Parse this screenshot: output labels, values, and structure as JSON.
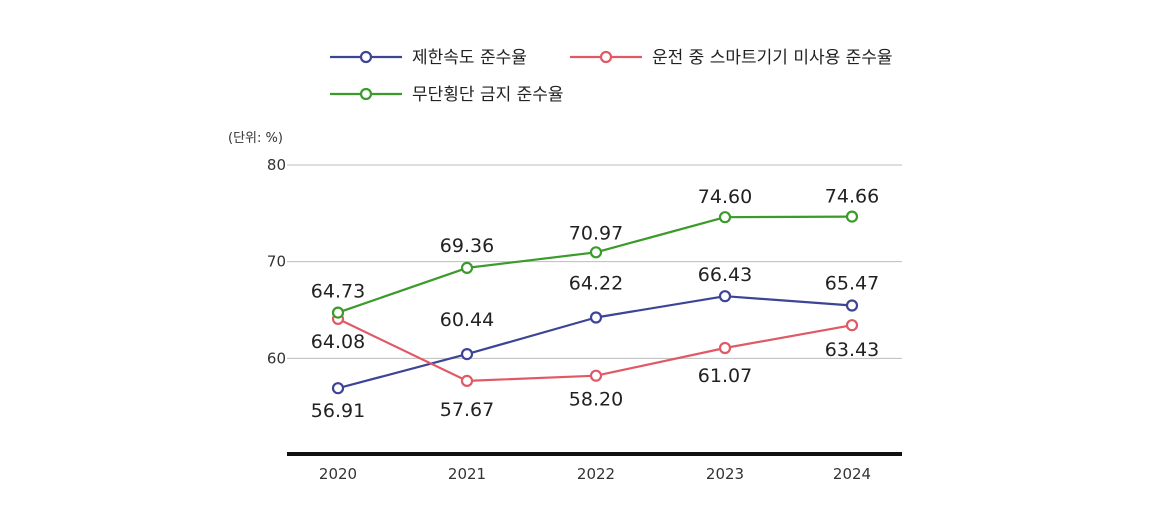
{
  "chart_data": {
    "type": "line",
    "unit_label": "(단위: %)",
    "categories": [
      "2020",
      "2021",
      "2022",
      "2023",
      "2024"
    ],
    "ylim": [
      50,
      80
    ],
    "yticks": [
      60,
      70,
      80
    ],
    "grid": true,
    "legend_position": "top",
    "series": [
      {
        "name": "제한속도 준수율",
        "color": "#3d4495",
        "values": [
          56.91,
          60.44,
          64.22,
          66.43,
          65.47
        ],
        "labels": [
          "56.91",
          "60.44",
          "64.22",
          "66.43",
          "65.47"
        ]
      },
      {
        "name": "운전 중 스마트기기 미사용 준수율",
        "color": "#e05a66",
        "values": [
          64.08,
          57.67,
          58.2,
          61.07,
          63.43
        ],
        "labels": [
          "64.08",
          "57.67",
          "58.20",
          "61.07",
          "63.43"
        ]
      },
      {
        "name": "무단횡단 금지 준수율",
        "color": "#3a9a2a",
        "values": [
          64.73,
          69.36,
          70.97,
          74.6,
          74.66
        ],
        "labels": [
          "64.73",
          "69.36",
          "70.97",
          "74.60",
          "74.66"
        ]
      }
    ]
  }
}
